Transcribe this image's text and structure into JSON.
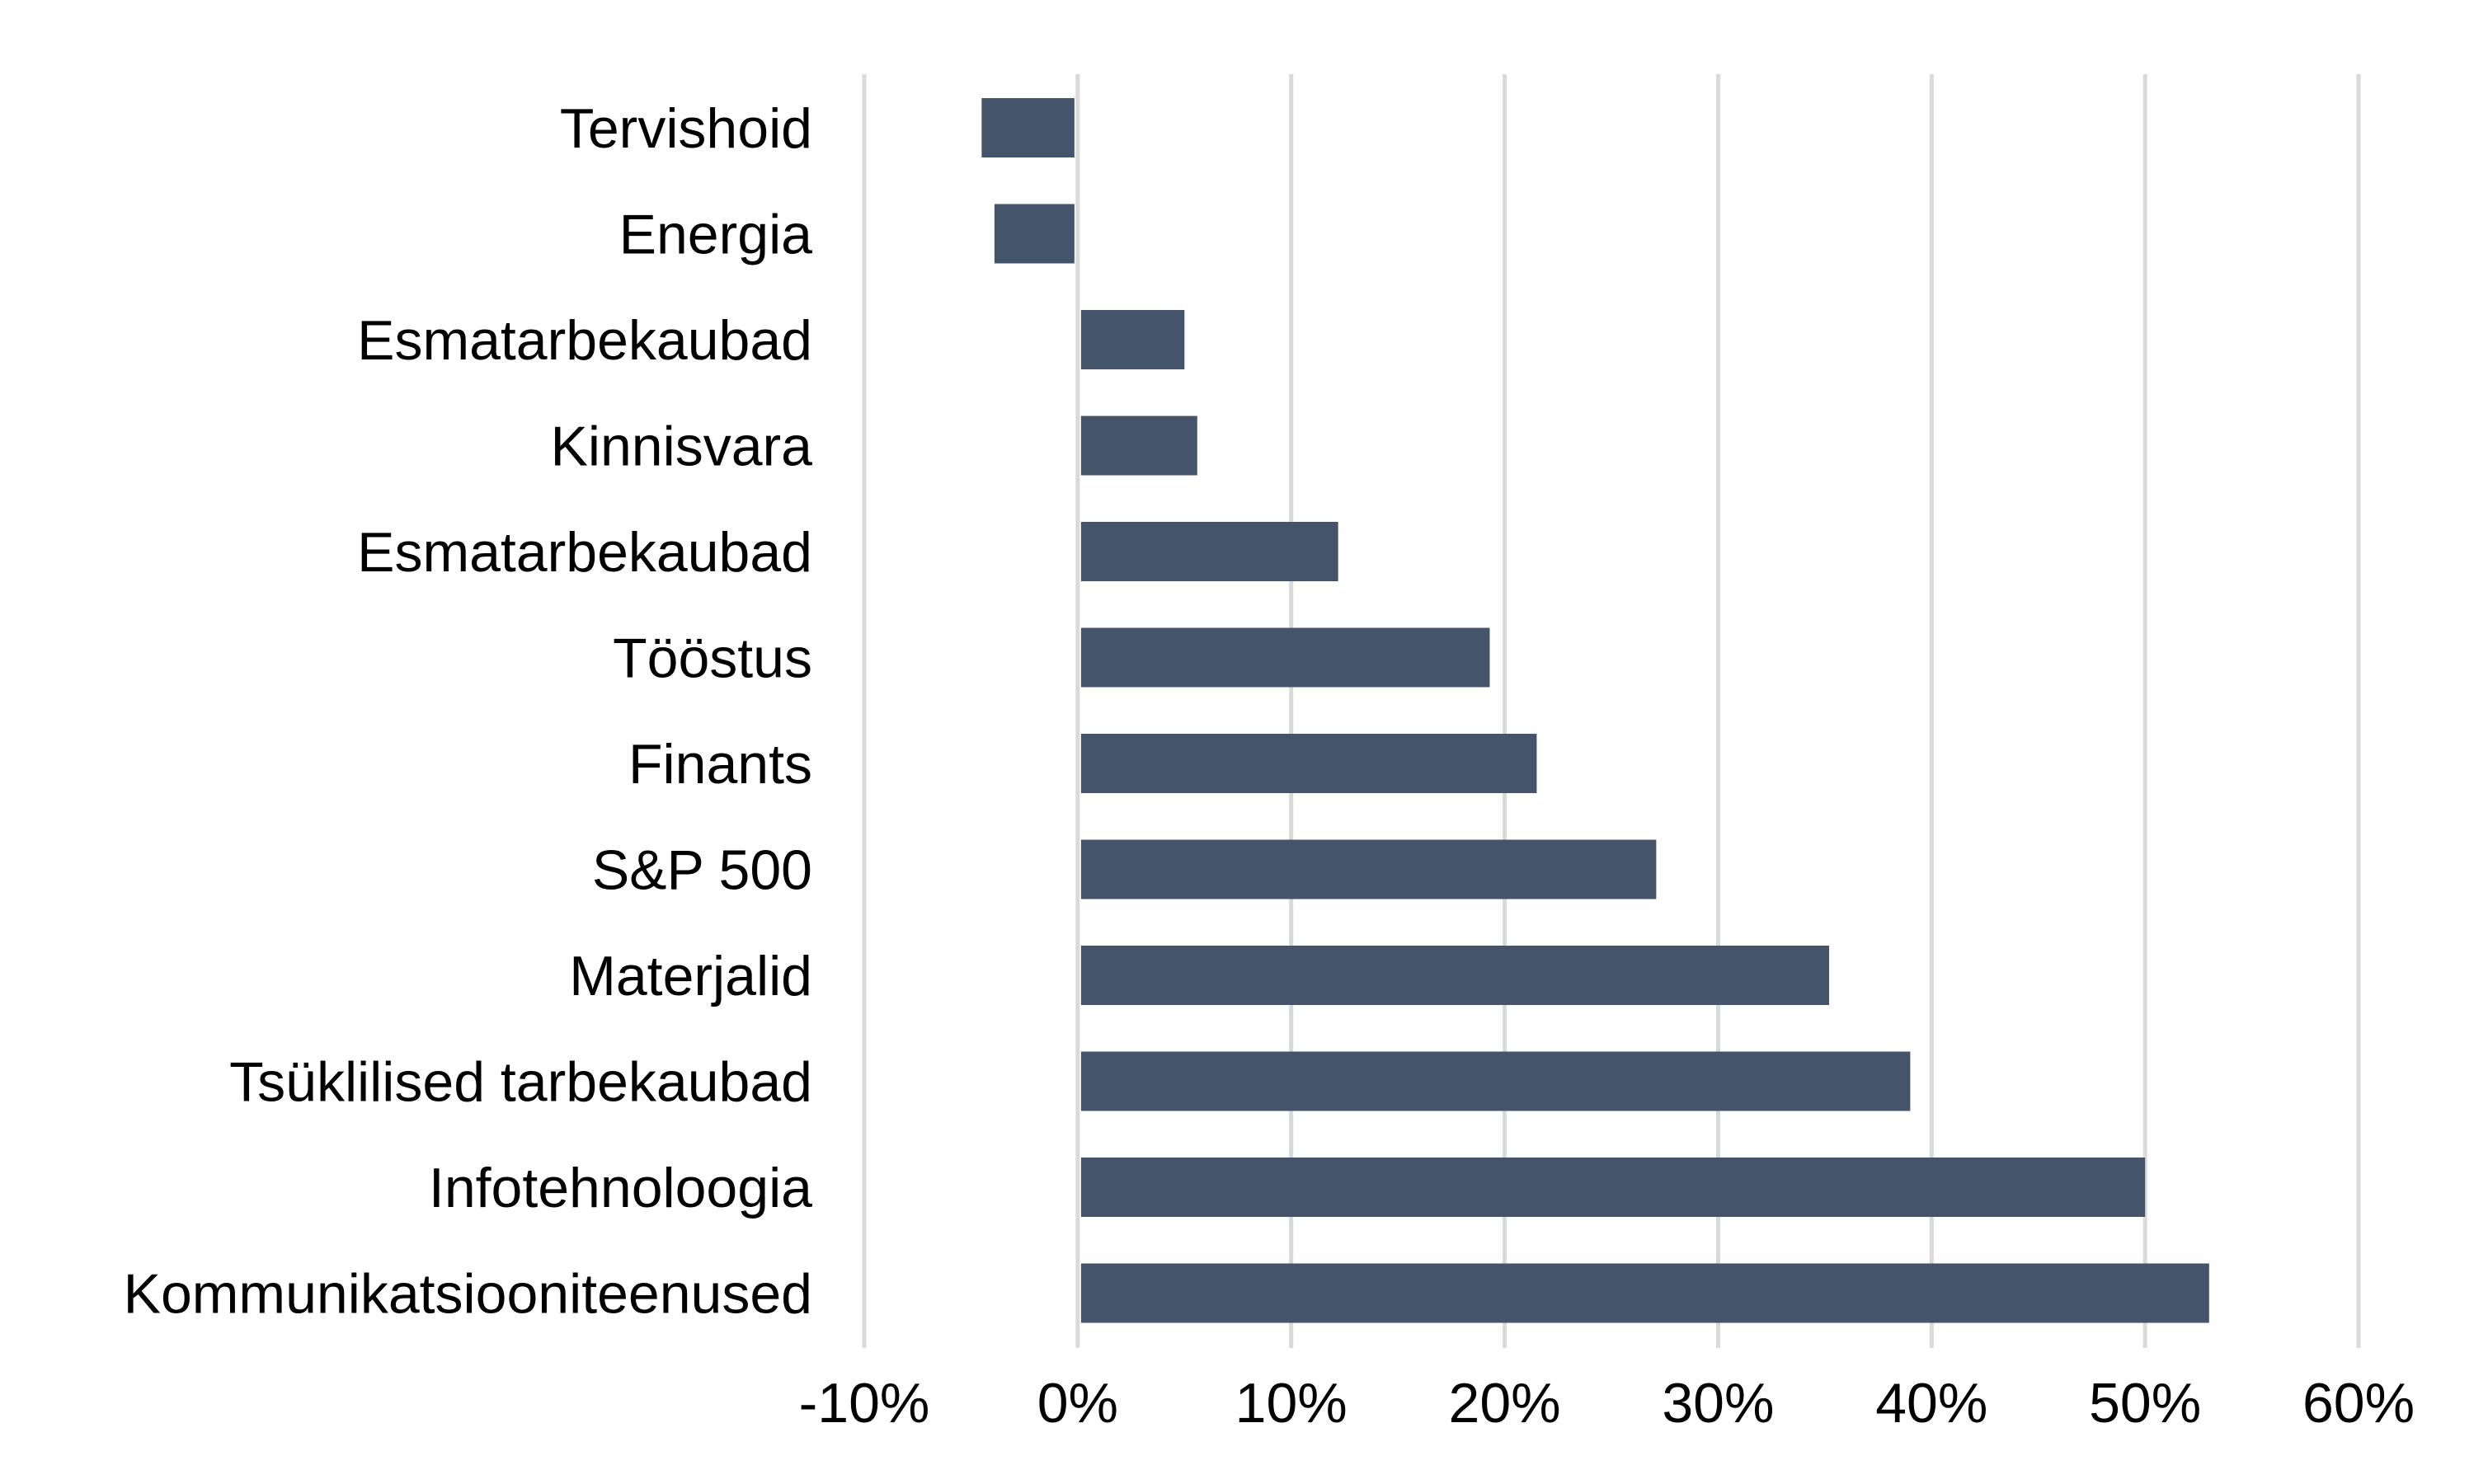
{
  "chart_data": {
    "type": "bar",
    "orientation": "horizontal",
    "categories": [
      "Tervishoid",
      "Energia",
      "Esmatarbekaubad",
      "Kinnisvara",
      "Esmatarbekaubad",
      "Tööstus",
      "Finants",
      "S&P 500",
      "Materjalid",
      "Tsüklilised tarbekaubad",
      "Infotehnoloogia",
      "Kommunikatsiooniteenused"
    ],
    "values": [
      -4.5,
      -3.9,
      5.0,
      5.6,
      12.2,
      19.3,
      21.5,
      27.1,
      35.2,
      39.0,
      50.0,
      53.0
    ],
    "xlim": [
      -10,
      60
    ],
    "xticks": [
      -10,
      0,
      10,
      20,
      30,
      40,
      50,
      60
    ],
    "xtick_labels": [
      "-10%",
      "0%",
      "10%",
      "20%",
      "30%",
      "40%",
      "50%",
      "60%"
    ],
    "grid": "vertical",
    "bar_color": "#44546a",
    "gridline_color": "#d9d9d9",
    "title": "",
    "xlabel": "",
    "ylabel": ""
  }
}
